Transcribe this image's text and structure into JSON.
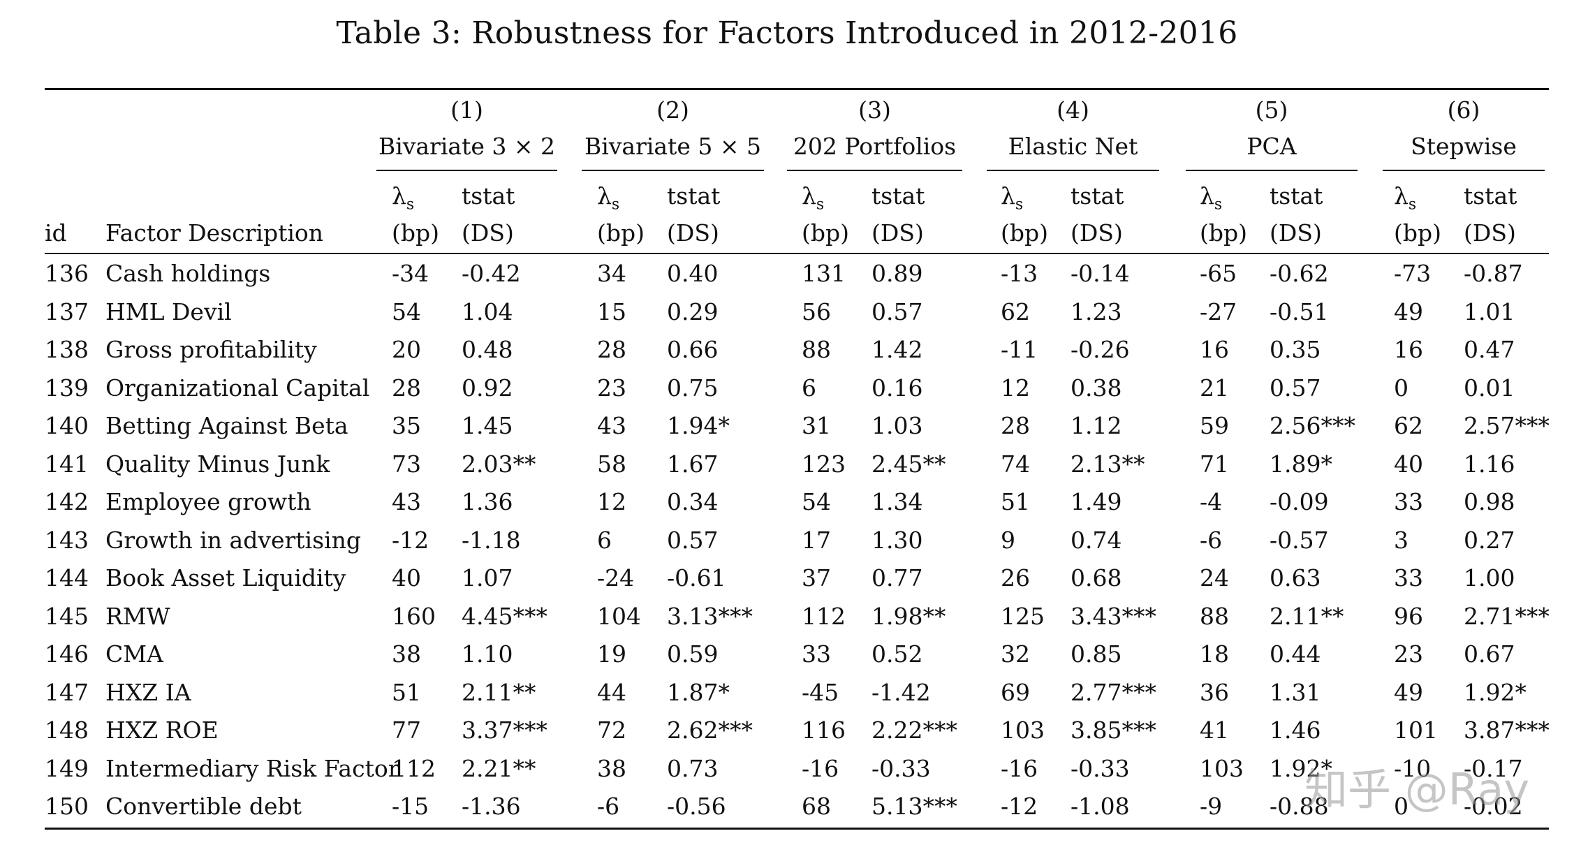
{
  "title": "Table 3: Robustness for Factors Introduced in 2012-2016",
  "header": {
    "id_label": "id",
    "desc_label": "Factor Description",
    "lambda_symbol": "λ",
    "lambda_sub": "s",
    "tstat_label": "tstat",
    "bp_label": "(bp)",
    "ds_label": "(DS)",
    "groups": [
      {
        "num": "(1)",
        "name": "Bivariate 3 × 2"
      },
      {
        "num": "(2)",
        "name": "Bivariate 5 × 5"
      },
      {
        "num": "(3)",
        "name": "202 Portfolios"
      },
      {
        "num": "(4)",
        "name": "Elastic Net"
      },
      {
        "num": "(5)",
        "name": "PCA"
      },
      {
        "num": "(6)",
        "name": "Stepwise"
      }
    ]
  },
  "rows": [
    {
      "id": "136",
      "desc": "Cash holdings",
      "vals": [
        "-34",
        "-0.42",
        "34",
        "0.40",
        "131",
        "0.89",
        "-13",
        "-0.14",
        "-65",
        "-0.62",
        "-73",
        "-0.87"
      ]
    },
    {
      "id": "137",
      "desc": "HML Devil",
      "vals": [
        "54",
        "1.04",
        "15",
        "0.29",
        "56",
        "0.57",
        "62",
        "1.23",
        "-27",
        "-0.51",
        "49",
        "1.01"
      ]
    },
    {
      "id": "138",
      "desc": "Gross profitability",
      "vals": [
        "20",
        "0.48",
        "28",
        "0.66",
        "88",
        "1.42",
        "-11",
        "-0.26",
        "16",
        "0.35",
        "16",
        "0.47"
      ]
    },
    {
      "id": "139",
      "desc": "Organizational Capital",
      "vals": [
        "28",
        "0.92",
        "23",
        "0.75",
        "6",
        "0.16",
        "12",
        "0.38",
        "21",
        "0.57",
        "0",
        "0.01"
      ]
    },
    {
      "id": "140",
      "desc": "Betting Against Beta",
      "vals": [
        "35",
        "1.45",
        "43",
        "1.94*",
        "31",
        "1.03",
        "28",
        "1.12",
        "59",
        "2.56***",
        "62",
        "2.57***"
      ]
    },
    {
      "id": "141",
      "desc": "Quality Minus Junk",
      "vals": [
        "73",
        "2.03**",
        "58",
        "1.67",
        "123",
        "2.45**",
        "74",
        "2.13**",
        "71",
        "1.89*",
        "40",
        "1.16"
      ]
    },
    {
      "id": "142",
      "desc": "Employee growth",
      "vals": [
        "43",
        "1.36",
        "12",
        "0.34",
        "54",
        "1.34",
        "51",
        "1.49",
        "-4",
        "-0.09",
        "33",
        "0.98"
      ]
    },
    {
      "id": "143",
      "desc": "Growth in advertising",
      "vals": [
        "-12",
        "-1.18",
        "6",
        "0.57",
        "17",
        "1.30",
        "9",
        "0.74",
        "-6",
        "-0.57",
        "3",
        "0.27"
      ]
    },
    {
      "id": "144",
      "desc": "Book Asset Liquidity",
      "vals": [
        "40",
        "1.07",
        "-24",
        "-0.61",
        "37",
        "0.77",
        "26",
        "0.68",
        "24",
        "0.63",
        "33",
        "1.00"
      ]
    },
    {
      "id": "145",
      "desc": "RMW",
      "vals": [
        "160",
        "4.45***",
        "104",
        "3.13***",
        "112",
        "1.98**",
        "125",
        "3.43***",
        "88",
        "2.11**",
        "96",
        "2.71***"
      ]
    },
    {
      "id": "146",
      "desc": "CMA",
      "vals": [
        "38",
        "1.10",
        "19",
        "0.59",
        "33",
        "0.52",
        "32",
        "0.85",
        "18",
        "0.44",
        "23",
        "0.67"
      ]
    },
    {
      "id": "147",
      "desc": "HXZ IA",
      "vals": [
        "51",
        "2.11**",
        "44",
        "1.87*",
        "-45",
        "-1.42",
        "69",
        "2.77***",
        "36",
        "1.31",
        "49",
        "1.92*"
      ]
    },
    {
      "id": "148",
      "desc": "HXZ ROE",
      "vals": [
        "77",
        "3.37***",
        "72",
        "2.62***",
        "116",
        "2.22***",
        "103",
        "3.85***",
        "41",
        "1.46",
        "101",
        "3.87***"
      ]
    },
    {
      "id": "149",
      "desc": "Intermediary Risk Factor",
      "vals": [
        "112",
        "2.21**",
        "38",
        "0.73",
        "-16",
        "-0.33",
        "-16",
        "-0.33",
        "103",
        "1.92*",
        "-10",
        "-0.17"
      ]
    },
    {
      "id": "150",
      "desc": "Convertible debt",
      "vals": [
        "-15",
        "-1.36",
        "-6",
        "-0.56",
        "68",
        "5.13***",
        "-12",
        "-1.08",
        "-9",
        "-0.88",
        "0",
        "-0.02"
      ]
    }
  ],
  "watermark": "知乎 @Ray"
}
